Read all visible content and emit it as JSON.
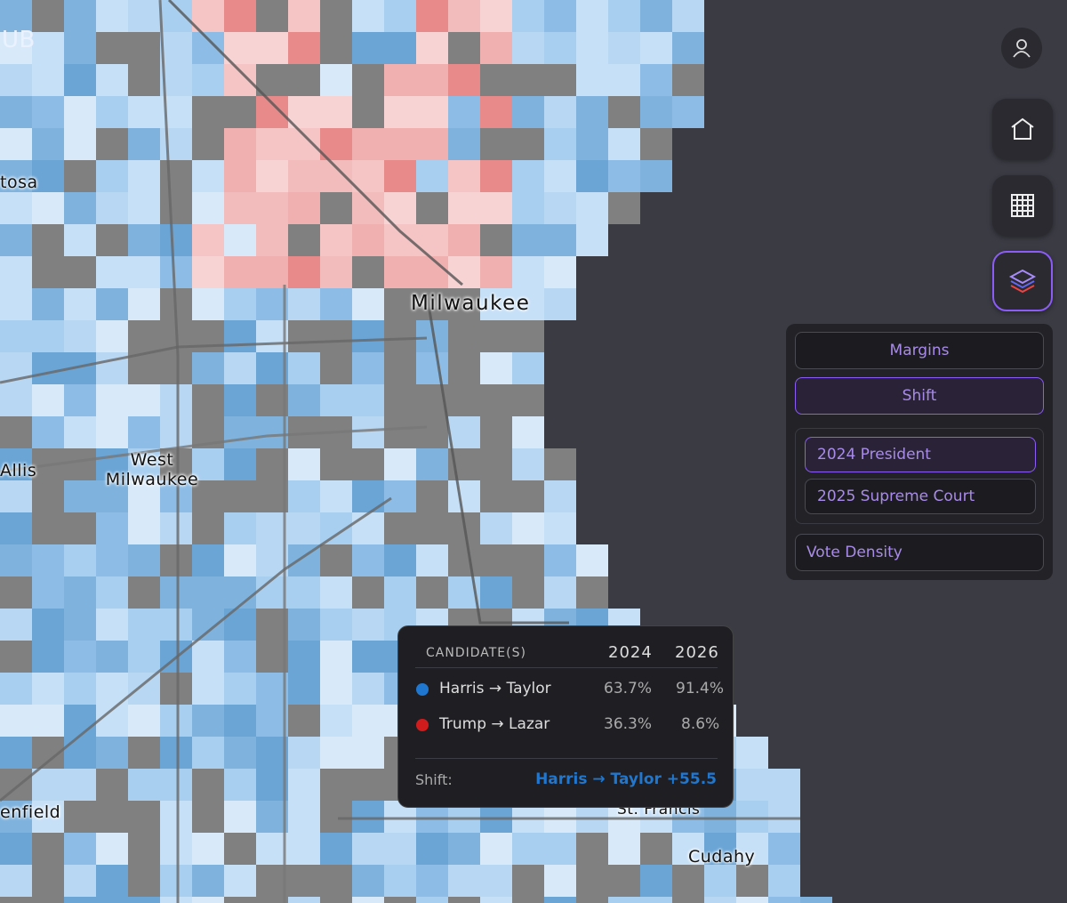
{
  "map": {
    "place_labels": [
      "UB",
      "tosa",
      "Milwaukee",
      "Allis",
      "West Milwaukee",
      "enfield",
      "St. Francis",
      "Cudahy"
    ]
  },
  "layer_panel": {
    "modes": [
      "Margins",
      "Shift"
    ],
    "elections": [
      "2024 President",
      "2025 Supreme Court"
    ],
    "extra": "Vote Density"
  },
  "tooltip": {
    "header": [
      "CANDIDATE(S)",
      "2024",
      "2026"
    ],
    "rows": [
      [
        "Harris → Taylor",
        "63.7%",
        "91.4%"
      ],
      [
        "Trump → Lazar",
        "36.3%",
        "8.6%"
      ]
    ],
    "shift_label": "Shift:",
    "shift_value": "Harris → Taylor +55.5"
  }
}
